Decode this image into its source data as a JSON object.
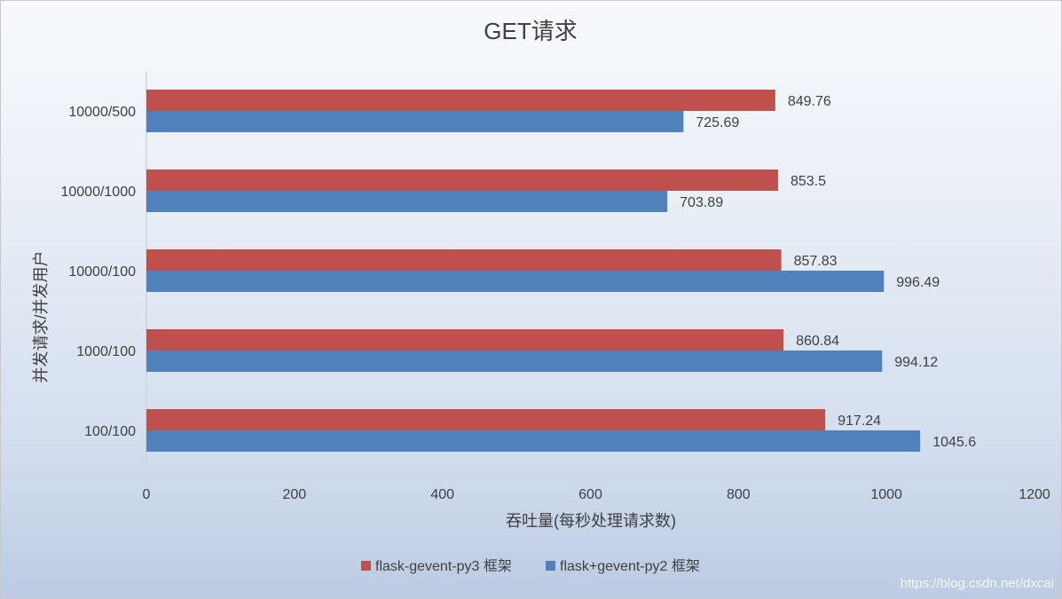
{
  "chart_data": {
    "type": "bar",
    "orientation": "horizontal",
    "title": "GET请求",
    "xlabel": "吞吐量(每秒处理请求数)",
    "ylabel": "并发请求/并发用户",
    "xlim": [
      0,
      1200
    ],
    "xticks": [
      "0",
      "200",
      "400",
      "600",
      "800",
      "1000",
      "1200"
    ],
    "categories": [
      "10000/500",
      "10000/1000",
      "10000/100",
      "1000/100",
      "100/100"
    ],
    "series": [
      {
        "name": "flask-gevent-py3 框架",
        "color": "#c0504d",
        "values": [
          849.76,
          853.5,
          857.83,
          860.84,
          917.24
        ],
        "labels": [
          "849.76",
          "853.5",
          "857.83",
          "860.84",
          "917.24"
        ]
      },
      {
        "name": "flask+gevent-py2 框架",
        "color": "#4f81bd",
        "values": [
          725.69,
          703.89,
          996.49,
          994.12,
          1045.6
        ],
        "labels": [
          "725.69",
          "703.89",
          "996.49",
          "994.12",
          "1045.6"
        ]
      }
    ],
    "grid": false,
    "legend_position": "bottom"
  },
  "watermark": "https://blog.csdn.net/dxcai"
}
